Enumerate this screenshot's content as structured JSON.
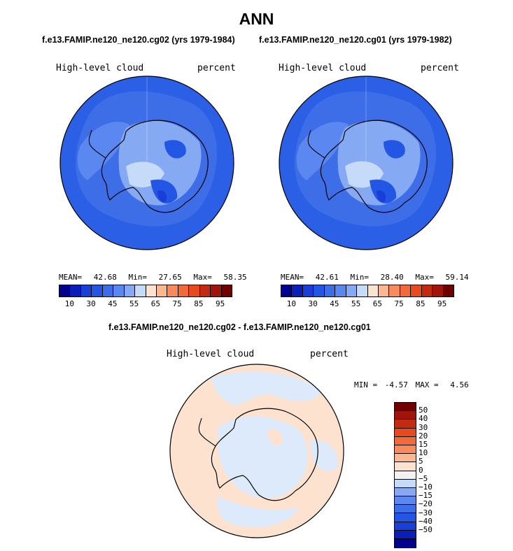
{
  "title": "ANN",
  "panels": [
    {
      "subtitle": "f.e13.FAMIP.ne120_ne120.cg02 (yrs 1979-1984)",
      "left_label": "High-level cloud",
      "right_label": "percent",
      "stats": {
        "mean_label": "MEAN=",
        "mean": "42.68",
        "min_label": "Min=",
        "min": "27.65",
        "max_label": "Max=",
        "max": "58.35"
      }
    },
    {
      "subtitle": "f.e13.FAMIP.ne120_ne120.cg01 (yrs 1979-1982)",
      "left_label": "High-level cloud",
      "right_label": "percent",
      "stats": {
        "mean_label": "MEAN=",
        "mean": "42.61",
        "min_label": "Min=",
        "min": "28.40",
        "max_label": "Max=",
        "max": "59.14"
      }
    }
  ],
  "colorbar_top": {
    "ticks": [
      "10",
      "30",
      "45",
      "55",
      "65",
      "75",
      "85",
      "95"
    ],
    "colors": [
      "#000090",
      "#0a1fb8",
      "#1a3fd8",
      "#2456e6",
      "#3d6ee8",
      "#5a88f0",
      "#86a9f3",
      "#c6dbf9",
      "#fde3cf",
      "#fcb791",
      "#f88a5c",
      "#f26a3c",
      "#e84a1e",
      "#c42a10",
      "#a0140a",
      "#700000"
    ]
  },
  "diff_panel": {
    "subtitle": "f.e13.FAMIP.ne120_ne120.cg02 - f.e13.FAMIP.ne120_ne120.cg01",
    "left_label": "High-level cloud",
    "right_label": "percent",
    "minmax": {
      "min_label": "MIN =",
      "min": "-4.57",
      "max_label": "MAX =",
      "max": "4.56"
    }
  },
  "colorbar_diff": {
    "ticks": [
      "50",
      "40",
      "30",
      "20",
      "15",
      "10",
      "5",
      "0",
      "−5",
      "−10",
      "−15",
      "−20",
      "−30",
      "−40",
      "−50"
    ],
    "colors": [
      "#700000",
      "#a0140a",
      "#c42a10",
      "#e84a1e",
      "#f26a3c",
      "#f88a5c",
      "#fcb791",
      "#fde3cf",
      "#f2f2f2",
      "#c6dbf9",
      "#86a9f3",
      "#5a88f0",
      "#3d6ee8",
      "#2456e6",
      "#1a3fd8",
      "#0a1fb8",
      "#000090"
    ]
  }
}
